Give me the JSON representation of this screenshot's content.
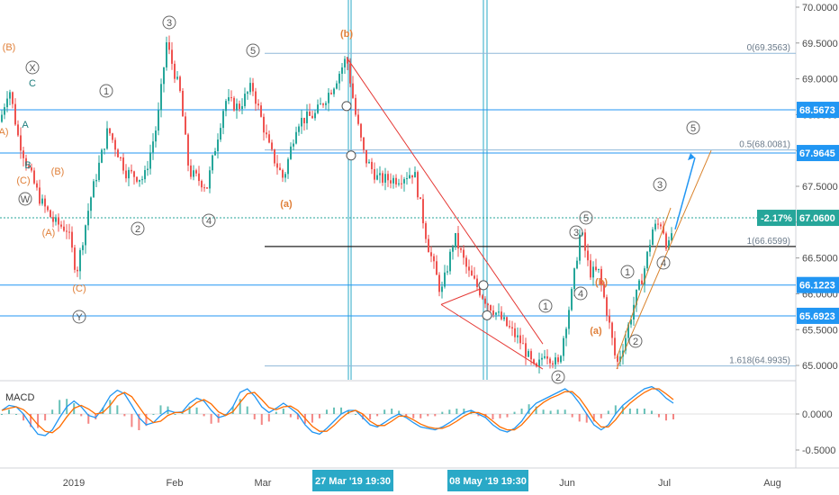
{
  "chart_data": {
    "type": "candlestick",
    "y_ticks": [
      "70.0000",
      "69.5000",
      "69.0000",
      "68.5000",
      "68.0000",
      "67.5000",
      "67.0000",
      "66.5000",
      "66.0000",
      "65.5000",
      "65.0000"
    ],
    "ylim": [
      64.85,
      70.05
    ],
    "x_ticks": [
      "2019",
      "Feb",
      "Mar",
      "Jun",
      "Jul",
      "Aug"
    ],
    "x_badges": [
      "27 Mar '19  19:30",
      "08 May '19  19:30"
    ],
    "price_badges": [
      {
        "text": "68.5673",
        "value": 68.5673,
        "color": "#2196f3"
      },
      {
        "text": "67.9645",
        "value": 67.9645,
        "color": "#2196f3"
      },
      {
        "text": "67.0600",
        "value": 67.06,
        "color": "#26a69a"
      },
      {
        "text": "66.1223",
        "value": 66.1223,
        "color": "#2196f3"
      },
      {
        "text": "65.6923",
        "value": 65.6923,
        "color": "#2196f3"
      }
    ],
    "change_badge": "-2.17%",
    "horizontal_lines": [
      68.5673,
      67.9645,
      67.06,
      66.1223,
      65.6923
    ],
    "fib_levels": [
      {
        "label": "0(69.3563)",
        "value": 69.3563
      },
      {
        "label": "0.5(68.0081)",
        "value": 68.0081
      },
      {
        "label": "1(66.6599)",
        "value": 66.6599
      },
      {
        "label": "1.618(64.9935)",
        "value": 64.9935
      }
    ],
    "macd": {
      "label": "MACD",
      "y_ticks": [
        "0.0000",
        "-0.5000"
      ],
      "ylim": [
        -0.75,
        0.45
      ],
      "macd_line": [
        0.05,
        0.12,
        0.1,
        0.0,
        -0.15,
        -0.28,
        -0.3,
        -0.22,
        -0.05,
        0.1,
        0.18,
        0.1,
        -0.02,
        -0.05,
        0.08,
        0.25,
        0.33,
        0.28,
        0.12,
        -0.05,
        -0.15,
        -0.12,
        -0.02,
        0.05,
        0.02,
        0.03,
        0.15,
        0.22,
        0.18,
        0.05,
        -0.05,
        -0.02,
        0.1,
        0.3,
        0.35,
        0.25,
        0.1,
        0.02,
        0.08,
        0.15,
        0.08,
        0.0,
        -0.15,
        -0.25,
        -0.28,
        -0.2,
        -0.1,
        0.0,
        0.05,
        0.05,
        -0.05,
        -0.15,
        -0.18,
        -0.12,
        -0.05,
        0.0,
        -0.05,
        -0.12,
        -0.18,
        -0.2,
        -0.22,
        -0.18,
        -0.12,
        -0.05,
        0.02,
        0.05,
        0.0,
        -0.05,
        -0.15,
        -0.22,
        -0.25,
        -0.2,
        -0.1,
        0.05,
        0.15,
        0.2,
        0.25,
        0.3,
        0.35,
        0.28,
        0.15,
        0.0,
        -0.15,
        -0.22,
        -0.15,
        0.0,
        0.12,
        0.2,
        0.28,
        0.35,
        0.38,
        0.32,
        0.22,
        0.15
      ],
      "signal_line": [
        0.05,
        0.08,
        0.1,
        0.06,
        -0.03,
        -0.15,
        -0.24,
        -0.26,
        -0.18,
        -0.04,
        0.08,
        0.12,
        0.07,
        0.0,
        0.02,
        0.12,
        0.25,
        0.3,
        0.24,
        0.1,
        -0.04,
        -0.12,
        -0.1,
        -0.02,
        0.02,
        0.02,
        0.08,
        0.16,
        0.2,
        0.14,
        0.03,
        -0.02,
        0.03,
        0.16,
        0.28,
        0.3,
        0.2,
        0.09,
        0.06,
        0.1,
        0.11,
        0.05,
        -0.06,
        -0.17,
        -0.24,
        -0.24,
        -0.16,
        -0.06,
        0.02,
        0.05,
        0.0,
        -0.1,
        -0.16,
        -0.16,
        -0.1,
        -0.03,
        -0.03,
        -0.08,
        -0.14,
        -0.18,
        -0.2,
        -0.2,
        -0.16,
        -0.1,
        -0.03,
        0.02,
        0.02,
        -0.02,
        -0.1,
        -0.18,
        -0.22,
        -0.22,
        -0.15,
        -0.04,
        0.08,
        0.16,
        0.22,
        0.26,
        0.31,
        0.31,
        0.22,
        0.08,
        -0.08,
        -0.18,
        -0.18,
        -0.08,
        0.05,
        0.15,
        0.23,
        0.3,
        0.35,
        0.35,
        0.28,
        0.2
      ]
    },
    "wave_labels": [
      {
        "text": "(B)",
        "style": "o"
      },
      {
        "text": "X",
        "style": "c"
      },
      {
        "text": "C",
        "style": "t"
      },
      {
        "text": "A",
        "style": "t"
      },
      {
        "text": "B",
        "style": "t"
      },
      {
        "text": "(B)",
        "style": "o"
      },
      {
        "text": "(C)",
        "style": "o"
      },
      {
        "text": "W",
        "style": "c"
      },
      {
        "text": "(A)",
        "style": "o"
      },
      {
        "text": "(C)",
        "style": "o"
      },
      {
        "text": "Y",
        "style": "c"
      },
      {
        "text": "A)",
        "style": "o"
      },
      {
        "text": "1",
        "style": "c"
      },
      {
        "text": "2",
        "style": "c"
      },
      {
        "text": "3",
        "style": "c"
      },
      {
        "text": "4",
        "style": "c"
      },
      {
        "text": "5",
        "style": "c"
      },
      {
        "text": "(a)",
        "style": "ob"
      },
      {
        "text": "(b)",
        "style": "ob"
      },
      {
        "text": "1",
        "style": "c"
      },
      {
        "text": "2",
        "style": "c"
      },
      {
        "text": "3",
        "style": "c"
      },
      {
        "text": "4",
        "style": "c"
      },
      {
        "text": "5",
        "style": "c"
      },
      {
        "text": "(a)",
        "style": "ob"
      },
      {
        "text": "(b)",
        "style": "ob"
      },
      {
        "text": "1",
        "style": "c"
      },
      {
        "text": "2",
        "style": "c"
      },
      {
        "text": "3",
        "style": "c"
      },
      {
        "text": "4",
        "style": "c"
      },
      {
        "text": "5",
        "style": "c"
      }
    ],
    "grid": false
  }
}
